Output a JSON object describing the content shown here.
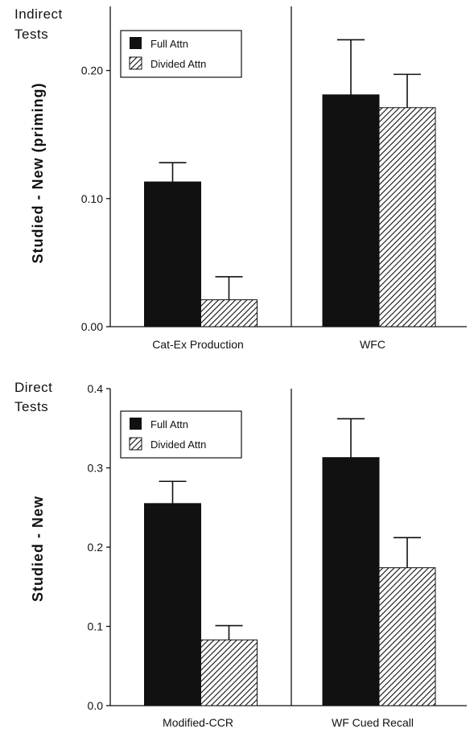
{
  "legend": {
    "full": "Full Attn",
    "divided": "Divided Attn"
  },
  "colors": {
    "full": "#111111",
    "divided_hatch": "#111111",
    "axis": "#111111"
  },
  "chart_data": [
    {
      "type": "bar",
      "section_label": [
        "Indirect",
        "Tests"
      ],
      "ylabel": "Studied  -  New  (priming)",
      "ylim": [
        0,
        0.25
      ],
      "yticks": [
        0.0,
        0.1,
        0.2
      ],
      "ytick_labels": [
        "0.00",
        "0.10",
        "0.20"
      ],
      "legend_position": "top-left",
      "categories": [
        "Cat-Ex  Production",
        "WFC"
      ],
      "series": [
        {
          "name": "Full Attn",
          "values": [
            0.113,
            0.181
          ],
          "errors": [
            0.015,
            0.043
          ]
        },
        {
          "name": "Divided Attn",
          "values": [
            0.021,
            0.171
          ],
          "errors": [
            0.018,
            0.026
          ]
        }
      ]
    },
    {
      "type": "bar",
      "section_label": [
        "Direct",
        "Tests"
      ],
      "ylabel": "Studied  -  New",
      "ylim": [
        0,
        0.4
      ],
      "yticks": [
        0.0,
        0.1,
        0.2,
        0.3,
        0.4
      ],
      "ytick_labels": [
        "0.0",
        "0.1",
        "0.2",
        "0.3",
        "0.4"
      ],
      "legend_position": "top-left",
      "categories": [
        "Modified-CCR",
        "WF Cued Recall"
      ],
      "series": [
        {
          "name": "Full Attn",
          "values": [
            0.255,
            0.313
          ],
          "errors": [
            0.028,
            0.049
          ]
        },
        {
          "name": "Divided Attn",
          "values": [
            0.083,
            0.174
          ],
          "errors": [
            0.018,
            0.038
          ]
        }
      ]
    }
  ]
}
